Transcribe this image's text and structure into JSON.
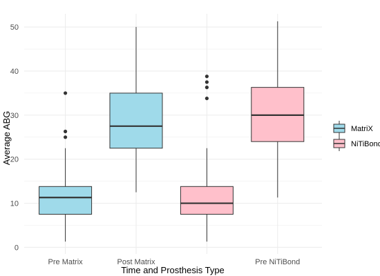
{
  "chart_data": {
    "type": "boxplot",
    "title": "",
    "xlabel": "Time and Prosthesis Type",
    "ylabel": "Average ABG",
    "ylim": [
      -1.5,
      53
    ],
    "yticks": [
      0,
      10,
      20,
      30,
      40,
      50
    ],
    "x_tick_labels": [
      "Pre Matrix",
      "Post Matrix",
      "",
      "Pre NiTiBond"
    ],
    "grid": true,
    "legend_position": "right",
    "legend": [
      {
        "label": "MatriX",
        "color": "#9fdaea"
      },
      {
        "label": "NiTiBond",
        "color": "#ffc0cb"
      }
    ],
    "boxes": [
      {
        "group": "MatriX",
        "min": 1.3,
        "q1": 7.5,
        "median": 11.3,
        "q3": 13.8,
        "max": 22.5,
        "outliers": [
          25.0,
          26.3,
          35.0
        ]
      },
      {
        "group": "MatriX",
        "min": 12.5,
        "q1": 22.5,
        "median": 27.5,
        "q3": 35.0,
        "max": 50.0,
        "outliers": []
      },
      {
        "group": "NiTiBond",
        "min": 1.3,
        "q1": 7.5,
        "median": 10.0,
        "q3": 13.8,
        "max": 22.5,
        "outliers": [
          33.8,
          36.3,
          37.5,
          38.8
        ]
      },
      {
        "group": "NiTiBond",
        "min": 11.3,
        "q1": 24.0,
        "median": 30.0,
        "q3": 36.3,
        "max": 51.3,
        "outliers": []
      }
    ]
  }
}
